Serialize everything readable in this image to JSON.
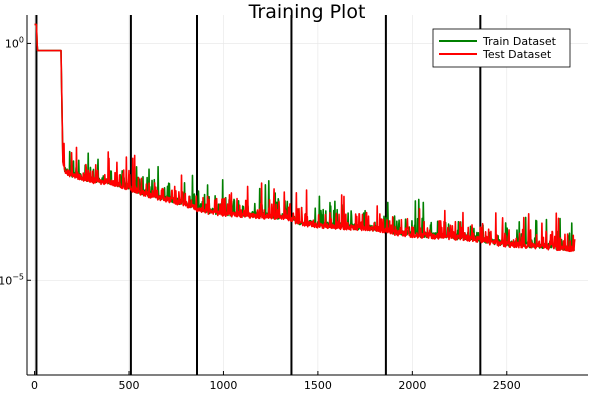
{
  "chart_data": {
    "type": "line",
    "title": "Training Plot",
    "xlabel": "",
    "ylabel": "",
    "xlim": [
      -40,
      2930
    ],
    "ylim": [
      -7,
      0.6
    ],
    "y_scale": "log10",
    "grid": true,
    "legend": {
      "placement": "top-right"
    },
    "x_ticks": [
      0,
      500,
      1000,
      1500,
      2000,
      2500
    ],
    "x_tick_labels": [
      "0",
      "500",
      "1000",
      "1500",
      "2000",
      "2500"
    ],
    "y_ticks": [
      0,
      -5
    ],
    "y_tick_labels": [
      "10^0",
      "10^-5"
    ],
    "vertical_lines": [
      10,
      510,
      860,
      1360,
      1860,
      2360
    ],
    "series": [
      {
        "name": "Train Dataset",
        "color": "#008000",
        "x": [
          0,
          10,
          15,
          140,
          150,
          160,
          200,
          300,
          400,
          500,
          520,
          600,
          700,
          800,
          860,
          900,
          1000,
          1200,
          1360,
          1400,
          1500,
          1700,
          1860,
          1900,
          2000,
          2200,
          2360,
          2400,
          2500,
          2700,
          2860
        ],
        "log10_y": [
          0.4,
          0.4,
          -0.15,
          -0.15,
          -2.5,
          -2.75,
          -2.85,
          -2.95,
          -3.0,
          -3.1,
          -3.15,
          -3.25,
          -3.35,
          -3.45,
          -3.55,
          -3.6,
          -3.65,
          -3.7,
          -3.75,
          -3.85,
          -3.9,
          -3.95,
          -4.0,
          -4.05,
          -4.1,
          -4.15,
          -4.2,
          -4.25,
          -4.3,
          -4.35,
          -4.4
        ]
      },
      {
        "name": "Test Dataset",
        "color": "#ff0000",
        "x": [
          0,
          10,
          15,
          140,
          150,
          160,
          200,
          300,
          400,
          500,
          520,
          600,
          700,
          800,
          860,
          900,
          1000,
          1200,
          1360,
          1400,
          1500,
          1700,
          1860,
          1900,
          2000,
          2200,
          2360,
          2400,
          2500,
          2700,
          2860
        ],
        "log10_y": [
          0.4,
          0.4,
          -0.15,
          -0.15,
          -2.5,
          -2.75,
          -2.85,
          -2.95,
          -3.0,
          -3.1,
          -3.15,
          -3.25,
          -3.35,
          -3.45,
          -3.55,
          -3.6,
          -3.65,
          -3.7,
          -3.75,
          -3.85,
          -3.9,
          -3.95,
          -4.0,
          -4.05,
          -4.1,
          -4.15,
          -4.2,
          -4.25,
          -4.3,
          -4.35,
          -4.4
        ]
      }
    ]
  }
}
